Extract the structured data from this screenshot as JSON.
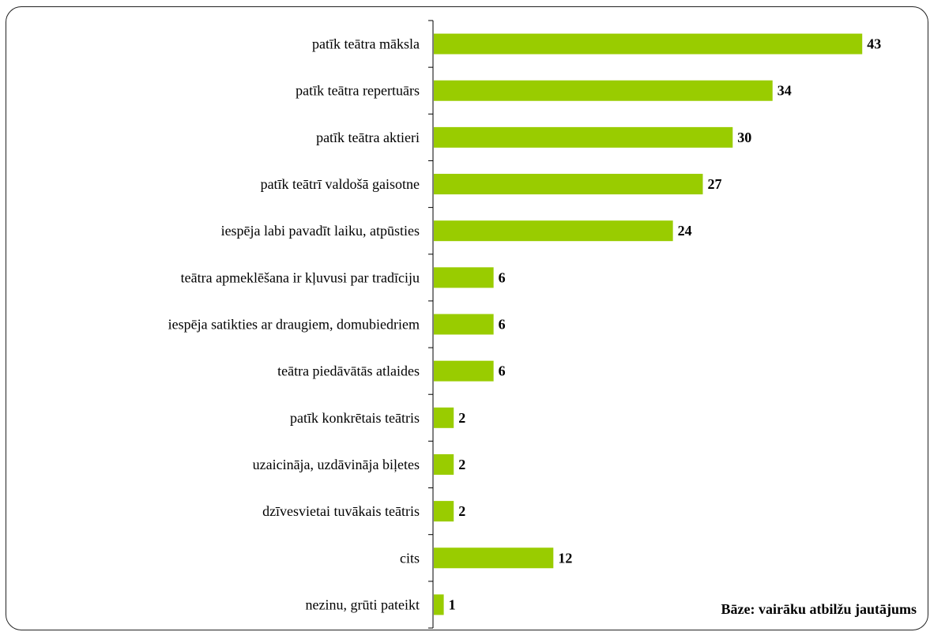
{
  "chart_data": {
    "type": "bar",
    "orientation": "horizontal",
    "categories": [
      "patīk teātra māksla",
      "patīk teātra repertuārs",
      "patīk teātra aktieri",
      "patīk teātrī valdošā gaisotne",
      "iespēja labi pavadīt laiku, atpūsties",
      "teātra apmeklēšana ir kļuvusi par tradīciju",
      "iespēja satikties ar draugiem, domubiedriem",
      "teātra piedāvātās atlaides",
      "patīk konkrētais teātris",
      "uzaicināja, uzdāvināja biļetes",
      "dzīvesvietai tuvākais teātris",
      "cits",
      "nezinu, grūti pateikt"
    ],
    "values": [
      43,
      34,
      30,
      27,
      24,
      6,
      6,
      6,
      2,
      2,
      2,
      12,
      1
    ],
    "value_labels": [
      "43",
      "34",
      "30",
      "27",
      "24",
      "6",
      "6",
      "6",
      "2",
      "2",
      "2",
      "12",
      "1"
    ],
    "xlim": [
      0,
      45
    ],
    "bar_color": "#99cc00",
    "grid": false,
    "legend": "none",
    "note": "Bāze: vairāku atbilžu jautājums"
  }
}
